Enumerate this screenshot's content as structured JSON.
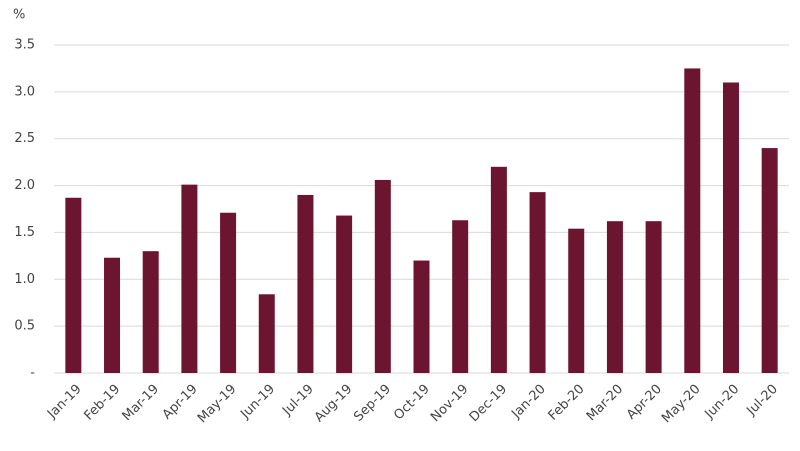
{
  "chart_data": {
    "type": "bar",
    "y_label": "%",
    "categories": [
      "Jan-19",
      "Feb-19",
      "Mar-19",
      "Apr-19",
      "May-19",
      "Jun-19",
      "Jul-19",
      "Aug-19",
      "Sep-19",
      "Oct-19",
      "Nov-19",
      "Dec-19",
      "Jan-20",
      "Feb-20",
      "Mar-20",
      "Apr-20",
      "May-20",
      "Jun-20",
      "Jul-20"
    ],
    "values": [
      1.87,
      1.23,
      1.3,
      2.01,
      1.71,
      0.84,
      1.9,
      1.68,
      2.06,
      1.2,
      1.63,
      2.2,
      1.93,
      1.54,
      1.62,
      1.62,
      3.25,
      3.1,
      2.4
    ],
    "color": "#6b1530",
    "ylim": [
      0,
      3.5
    ],
    "yticks": [
      {
        "value": 0,
        "label": "-"
      },
      0.5,
      {
        "value": 1,
        "label": "1.0"
      },
      1.5,
      {
        "value": 2,
        "label": "2.0"
      },
      2.5,
      {
        "value": 3,
        "label": "3.0"
      },
      3.5
    ],
    "grid": true
  }
}
